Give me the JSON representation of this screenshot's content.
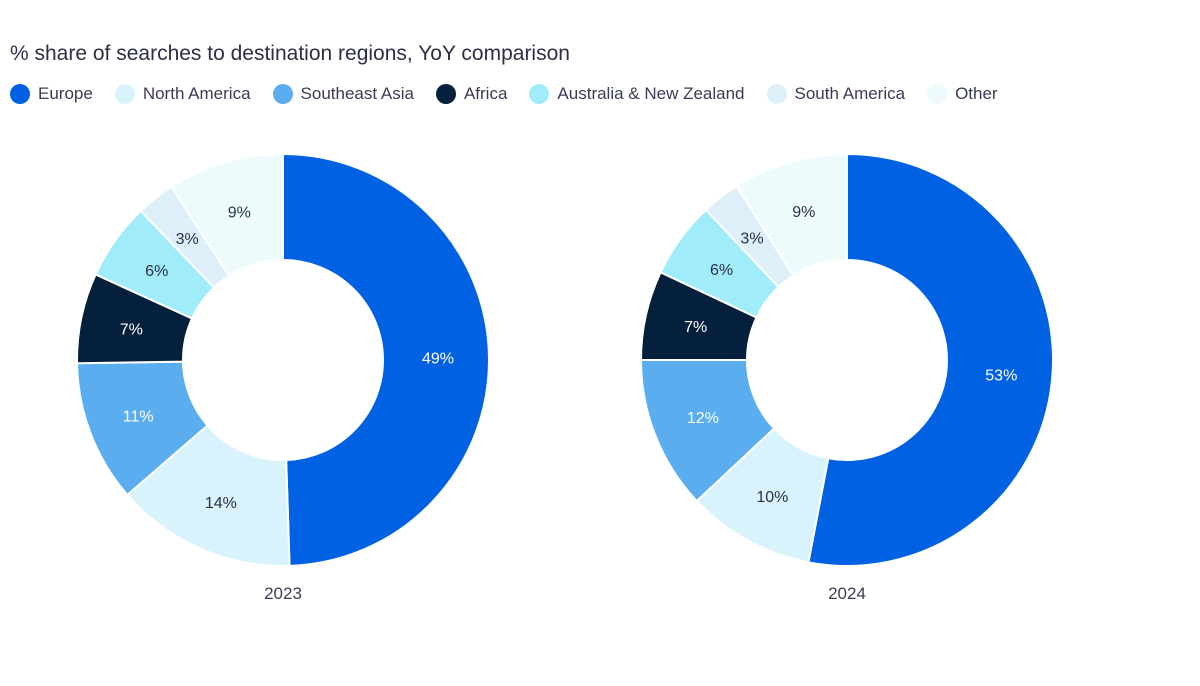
{
  "chart_data": {
    "type": "pie",
    "subtype": "donut",
    "title": "% share of searches to destination regions, YoY comparison",
    "legend_position": "top-left",
    "categories": [
      "Europe",
      "North America",
      "Southeast Asia",
      "Africa",
      "Australia & New Zealand",
      "South America",
      "Other"
    ],
    "colors": [
      "#0062E3",
      "#D9F3FC",
      "#5AAEF0",
      "#05203C",
      "#A0ECFA",
      "#DDF0FA",
      "#EEFBFD"
    ],
    "label_colors": [
      "#ffffff",
      "#2d2f45",
      "#ffffff",
      "#ffffff",
      "#2d2f45",
      "#2d2f45",
      "#2d2f45"
    ],
    "series": [
      {
        "name": "2023",
        "values": [
          49,
          14,
          11,
          7,
          6,
          3,
          9
        ],
        "labels": [
          "49%",
          "14%",
          "11%",
          "7%",
          "6%",
          "3%",
          "9%"
        ]
      },
      {
        "name": "2024",
        "values": [
          53,
          10,
          12,
          7,
          6,
          3,
          9
        ],
        "labels": [
          "53%",
          "10%",
          "12%",
          "7%",
          "6%",
          "3%",
          "9%"
        ]
      }
    ]
  }
}
